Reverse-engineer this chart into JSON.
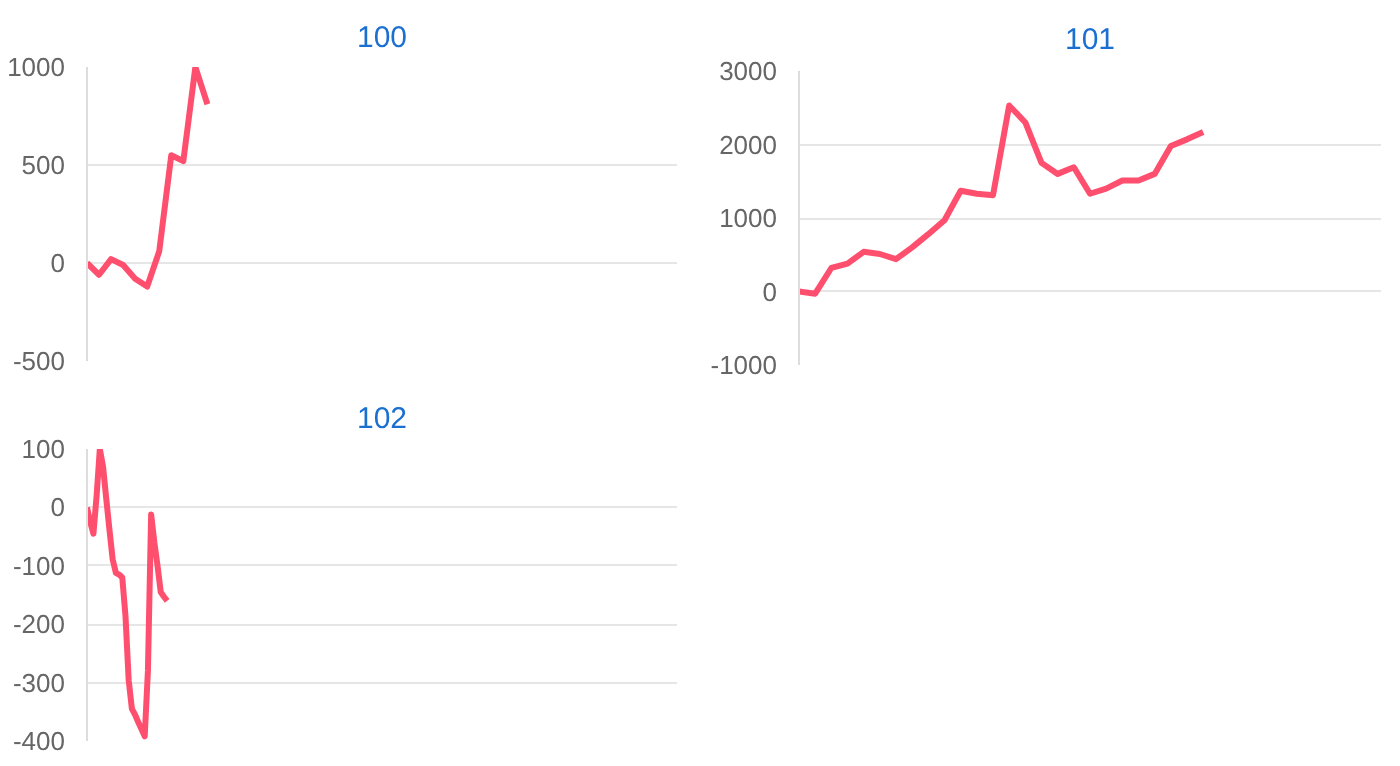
{
  "chart_data": [
    {
      "type": "line",
      "title": "100",
      "categories": [
        null,
        null,
        null,
        null,
        null,
        null,
        null,
        null,
        null,
        null,
        null,
        null,
        null,
        null,
        null,
        null,
        null,
        null,
        null,
        null,
        null,
        null,
        null,
        null,
        null,
        null,
        null,
        null,
        null,
        null,
        null,
        null,
        null,
        null,
        null,
        null,
        null,
        null,
        null,
        null,
        null,
        null,
        null,
        null,
        null,
        null,
        null,
        null,
        null,
        null
      ],
      "series": [
        {
          "color": "#ff4f6e",
          "values": [
            0,
            -60,
            20,
            -10,
            -80,
            -120,
            60,
            550,
            520,
            1000,
            810,
            null,
            null,
            null,
            null,
            null,
            null,
            null,
            null,
            null,
            null,
            null,
            null,
            null,
            null,
            null,
            null,
            null,
            null,
            null,
            null,
            null,
            null,
            null,
            null,
            null,
            null,
            null,
            null,
            null,
            null,
            null,
            null,
            null,
            null,
            null,
            null,
            null,
            null,
            null
          ]
        }
      ],
      "ylim": [
        -500,
        1000
      ],
      "yticks": [
        -500,
        0,
        500,
        1000
      ],
      "grid": "y",
      "tick_labels": "y"
    },
    {
      "type": "line",
      "title": "101",
      "categories": [
        null,
        null,
        null,
        null,
        null,
        null,
        null,
        null,
        null,
        null,
        null,
        null,
        null,
        null,
        null,
        null,
        null,
        null,
        null,
        null,
        null,
        null,
        null,
        null,
        null,
        null,
        null,
        null,
        null,
        null,
        null,
        null,
        null,
        null,
        null,
        null,
        null
      ],
      "series": [
        {
          "color": "#ff4f6e",
          "values": [
            0,
            -30,
            320,
            380,
            540,
            510,
            440,
            600,
            780,
            970,
            1370,
            1330,
            1310,
            2530,
            2300,
            1750,
            1600,
            1690,
            1330,
            1400,
            1510,
            1510,
            1600,
            1980,
            2070,
            2170,
            null,
            null,
            null,
            null,
            null,
            null,
            null,
            null,
            null,
            null,
            null
          ]
        }
      ],
      "ylim": [
        -1000,
        3000
      ],
      "yticks": [
        -1000,
        0,
        1000,
        2000,
        3000
      ],
      "grid": "y",
      "tick_labels": "y"
    },
    {
      "type": "line",
      "title": "102",
      "categories": [
        null,
        null,
        null,
        null,
        null,
        null,
        null,
        null,
        null,
        null,
        null,
        null,
        null,
        null,
        null,
        null,
        null,
        null,
        null,
        null,
        null,
        null,
        null,
        null,
        null,
        null,
        null,
        null,
        null,
        null,
        null,
        null,
        null,
        null,
        null,
        null,
        null,
        null,
        null,
        null,
        null,
        null,
        null,
        null,
        null,
        null,
        null,
        null,
        null,
        null,
        null,
        null,
        null,
        null,
        null,
        null,
        null,
        null,
        null,
        null,
        null,
        null,
        null,
        null,
        null,
        null,
        null,
        null,
        null,
        null,
        null,
        null,
        null,
        null,
        null,
        null,
        null,
        null,
        null,
        null,
        null,
        null,
        null,
        null,
        null,
        null,
        null,
        null,
        null,
        null,
        null,
        null,
        null,
        null,
        null,
        null,
        null,
        null,
        null,
        null,
        null,
        null,
        null,
        null,
        null,
        null,
        null,
        null,
        null,
        null,
        null,
        null,
        null,
        null,
        null,
        null,
        null,
        null,
        null,
        null,
        null,
        null,
        null,
        null,
        null,
        null,
        null,
        null,
        null,
        null,
        null,
        null,
        null,
        null,
        null,
        null,
        null,
        null,
        null,
        null,
        null,
        null,
        null,
        null,
        null,
        null,
        null,
        null,
        null,
        null,
        null,
        null,
        null,
        null,
        null,
        null,
        null,
        null,
        null,
        null,
        null,
        null,
        null,
        null,
        null,
        null,
        null,
        null,
        null,
        null,
        null,
        null,
        null,
        null,
        null,
        null,
        null,
        null,
        null,
        null,
        null,
        null,
        null,
        null,
        null
      ],
      "series": [
        {
          "color": "#ff4f6e",
          "values": [
            0,
            -25,
            -45,
            20,
            100,
            70,
            15,
            -38,
            -89,
            -112,
            -115,
            -120,
            -186,
            -296,
            -345,
            -355,
            -368,
            -380,
            -392,
            -280,
            -12,
            -60,
            -100,
            -145,
            -153,
            -160,
            null,
            null,
            null,
            null,
            null,
            null,
            null,
            null,
            null,
            null,
            null,
            null,
            null,
            null,
            null,
            null,
            null,
            null,
            null,
            null,
            null,
            null,
            null,
            null,
            null,
            null,
            null,
            null,
            null,
            null,
            null,
            null,
            null,
            null,
            null,
            null,
            null,
            null,
            null,
            null,
            null,
            null,
            null,
            null,
            null,
            null,
            null,
            null,
            null,
            null,
            null,
            null,
            null,
            null,
            null,
            null,
            null,
            null,
            null,
            null,
            null,
            null,
            null,
            null,
            null,
            null,
            null,
            null,
            null,
            null,
            null,
            null,
            null,
            null,
            null,
            null,
            null,
            null,
            null,
            null,
            null,
            null,
            null,
            null,
            null,
            null,
            null,
            null,
            null,
            null,
            null,
            null,
            null,
            null,
            null,
            null,
            null,
            null,
            null,
            null,
            null,
            null,
            null,
            null,
            null,
            null,
            null,
            null,
            null,
            null,
            null,
            null,
            null,
            null,
            null,
            null,
            null,
            null,
            null,
            null,
            null,
            null,
            null,
            null,
            null,
            null,
            null,
            null,
            null,
            null,
            null,
            null,
            null,
            null,
            null,
            null,
            null,
            null,
            null,
            null,
            null,
            null,
            null,
            null,
            null,
            null,
            null,
            null,
            null,
            null,
            null,
            null,
            null,
            null,
            null,
            null,
            null,
            null,
            null
          ]
        }
      ],
      "ylim": [
        -400,
        100
      ],
      "yticks": [
        -400,
        -300,
        -200,
        -100,
        0,
        100
      ],
      "grid": "y",
      "tick_labels": "y"
    }
  ]
}
